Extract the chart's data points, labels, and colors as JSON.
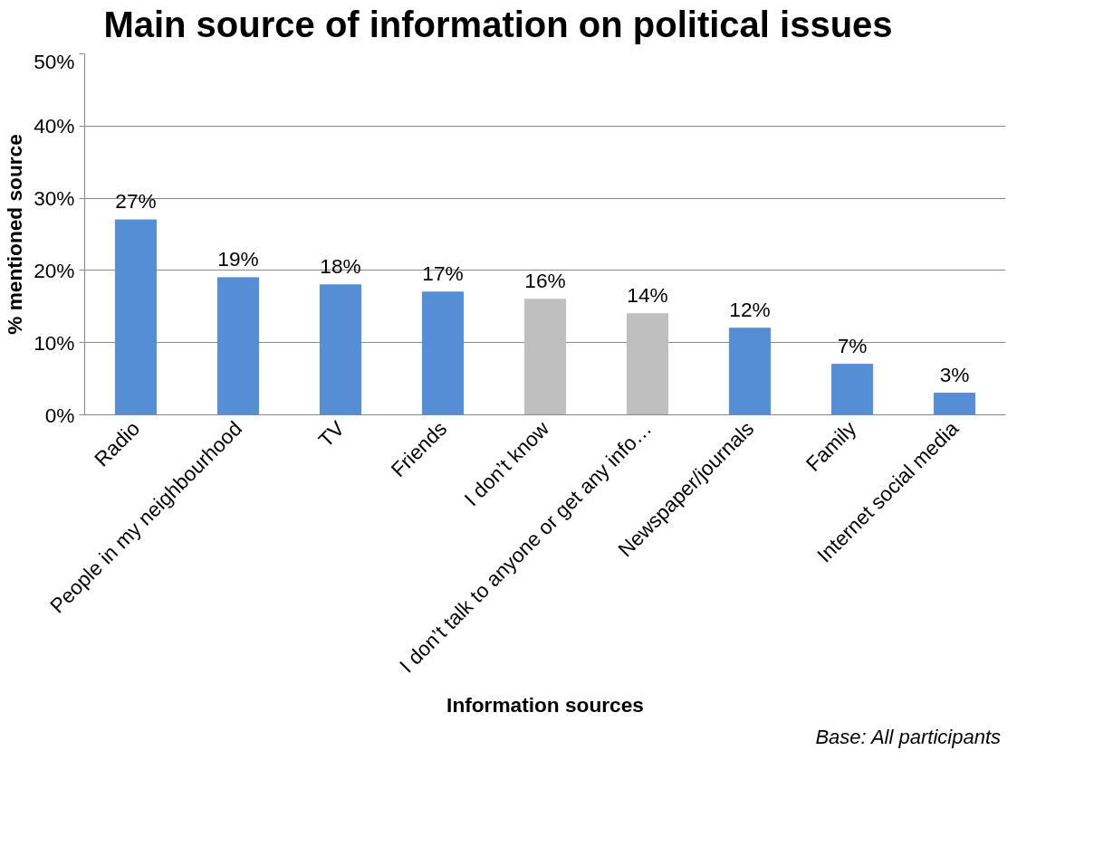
{
  "chart_data": {
    "type": "bar",
    "title": "Main source of information on political issues",
    "xlabel": "Information sources",
    "ylabel": "% mentioned source",
    "annotations": [
      "Base: All participants"
    ],
    "categories": [
      "Radio",
      "People in my neighbourhood",
      "TV",
      "Friends",
      "I don’t know",
      "I don’t talk to anyone or get any info…",
      "Newspaper/journals",
      "Family",
      "Internet social media"
    ],
    "values": [
      27,
      19,
      18,
      17,
      16,
      14,
      12,
      7,
      3
    ],
    "value_labels": [
      "27%",
      "19%",
      "18%",
      "17%",
      "16%",
      "14%",
      "12%",
      "7%",
      "3%"
    ],
    "colors": [
      "#558ed5",
      "#558ed5",
      "#558ed5",
      "#558ed5",
      "#bfbfbf",
      "#bfbfbf",
      "#558ed5",
      "#558ed5",
      "#558ed5"
    ],
    "ylim": [
      0,
      50
    ],
    "yticks": [
      {
        "value": 0,
        "label": "0%"
      },
      {
        "value": 10,
        "label": "10%"
      },
      {
        "value": 20,
        "label": "20%"
      },
      {
        "value": 30,
        "label": "30%"
      },
      {
        "value": 40,
        "label": "40%"
      },
      {
        "value": 50,
        "label": "50%"
      }
    ],
    "grid": "y"
  }
}
